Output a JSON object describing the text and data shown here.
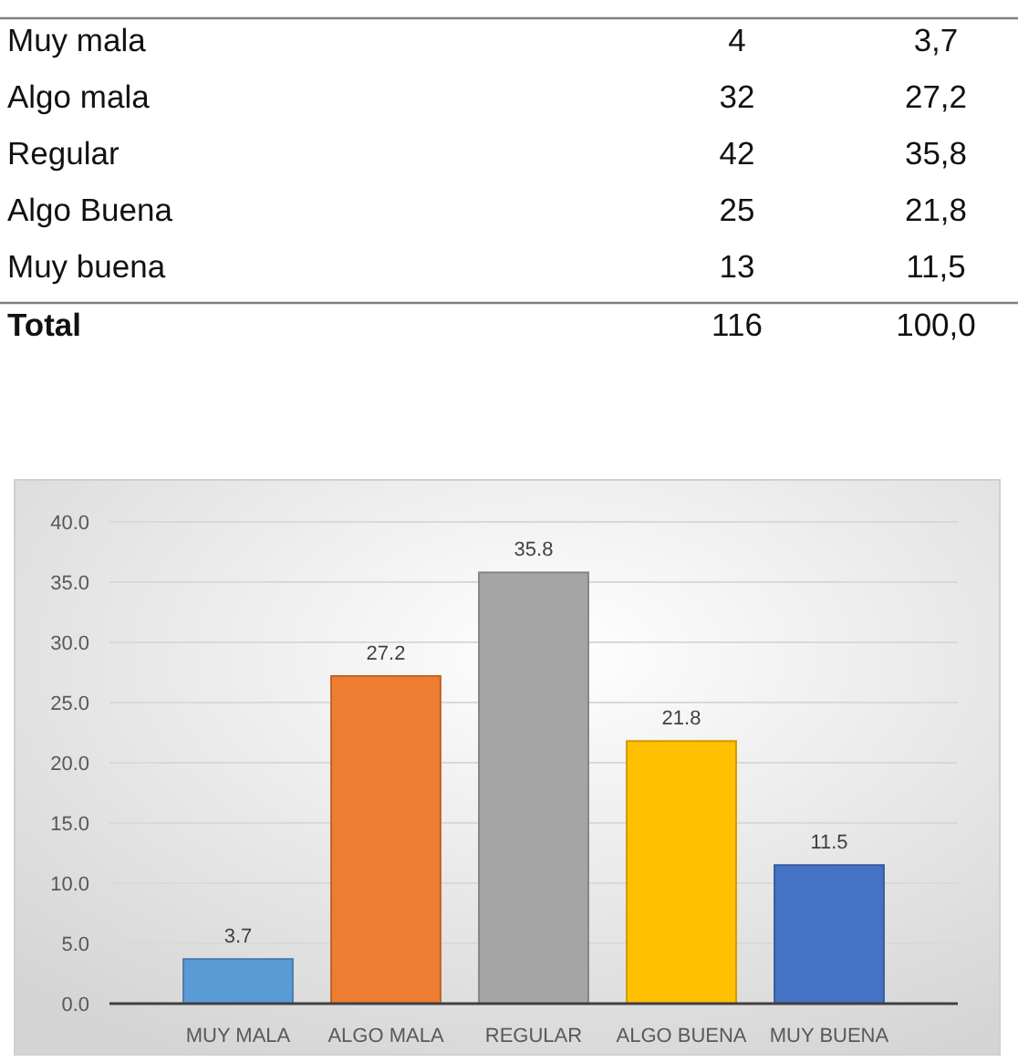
{
  "chart_data": [
    {
      "type": "other",
      "categories": [
        "Muy mala",
        "Algo mala",
        "Regular",
        "Algo Buena",
        "Muy buena",
        "Total"
      ],
      "series": [
        {
          "values": [
            4,
            32,
            42,
            25,
            13,
            116
          ],
          "value_labels": [
            "4",
            "32",
            "42",
            "25",
            "13",
            "116"
          ]
        },
        {
          "values": [
            3.7,
            27.2,
            35.8,
            21.8,
            11.5,
            100.0
          ],
          "value_labels": [
            "3,7",
            "27,2",
            "35,8",
            "21,8",
            "11,5",
            "100,0"
          ]
        }
      ]
    },
    {
      "type": "bar",
      "categories": [
        "MUY MALA",
        "ALGO MALA",
        "REGULAR",
        "ALGO BUENA",
        "MUY BUENA"
      ],
      "values": [
        3.7,
        27.2,
        35.8,
        21.8,
        11.5
      ],
      "colors": [
        "#5b9bd5",
        "#ed7d31",
        "#a5a5a5",
        "#ffc000",
        "#4472c4"
      ],
      "ylim": [
        0,
        40
      ],
      "yticks": [
        {
          "value": 0,
          "label": "0.0"
        },
        {
          "value": 5,
          "label": "5.0"
        },
        {
          "value": 10,
          "label": "10.0"
        },
        {
          "value": 15,
          "label": "15.0"
        },
        {
          "value": 20,
          "label": "20.0"
        },
        {
          "value": 25,
          "label": "25.0"
        },
        {
          "value": 30,
          "label": "30.0"
        },
        {
          "value": 35,
          "label": "35.0"
        },
        {
          "value": 40,
          "label": "40.0"
        }
      ],
      "grid": "y",
      "data_labels": true
    }
  ]
}
